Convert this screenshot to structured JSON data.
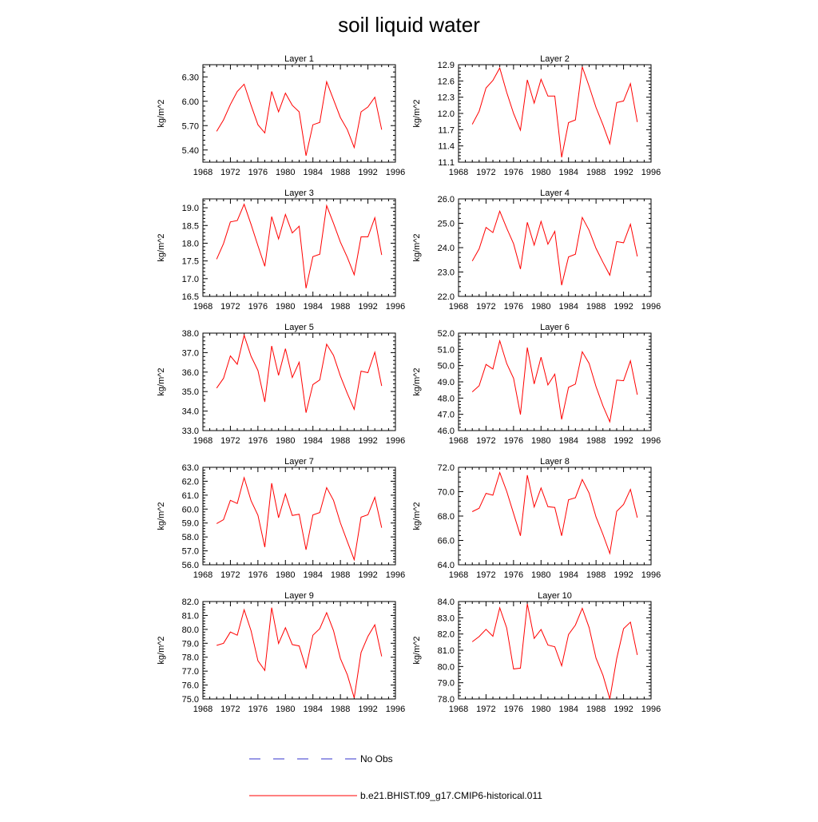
{
  "figure": {
    "title": "soil liquid water",
    "legend": {
      "placement": "bottom",
      "entries": [
        {
          "label": "No Obs",
          "color": "#3333cc",
          "style": "dashed"
        },
        {
          "label": "b.e21.BHIST.f09_g17.CMIP6-historical.011",
          "color": "#ff0000",
          "style": "solid"
        }
      ]
    }
  },
  "chart_data": [
    {
      "type": "line",
      "title": "Layer 1",
      "xlabel": "",
      "ylabel": "kg/m^2",
      "grid": false,
      "xlim": [
        1968,
        1996
      ],
      "xticks": [
        "1968",
        "1972",
        "1976",
        "1980",
        "1984",
        "1988",
        "1992",
        "1996"
      ],
      "ylim": [
        5.25,
        6.45
      ],
      "yticks": [
        "5.40",
        "5.70",
        "6.00",
        "6.30"
      ],
      "x": [
        1970,
        1971,
        1972,
        1973,
        1974,
        1975,
        1976,
        1977,
        1978,
        1979,
        1980,
        1981,
        1982,
        1983,
        1984,
        1985,
        1986,
        1987,
        1988,
        1989,
        1990,
        1991,
        1992,
        1993,
        1994
      ],
      "series": [
        {
          "name": "b.e21.BHIST.f09_g17.CMIP6-historical.011",
          "color": "#ff0000",
          "values": [
            5.63,
            5.77,
            5.96,
            6.12,
            6.21,
            5.95,
            5.71,
            5.61,
            6.12,
            5.87,
            6.1,
            5.95,
            5.87,
            5.33,
            5.71,
            5.74,
            6.24,
            6.02,
            5.8,
            5.65,
            5.43,
            5.87,
            5.93,
            6.05,
            5.65
          ]
        }
      ]
    },
    {
      "type": "line",
      "title": "Layer 2",
      "xlabel": "",
      "ylabel": "kg/m^2",
      "grid": false,
      "xlim": [
        1968,
        1996
      ],
      "xticks": [
        "1968",
        "1972",
        "1976",
        "1980",
        "1984",
        "1988",
        "1992",
        "1996"
      ],
      "ylim": [
        11.1,
        12.9
      ],
      "yticks": [
        "11.1",
        "11.4",
        "11.7",
        "12.0",
        "12.3",
        "12.6",
        "12.9"
      ],
      "x": [
        1970,
        1971,
        1972,
        1973,
        1974,
        1975,
        1976,
        1977,
        1978,
        1979,
        1980,
        1981,
        1982,
        1983,
        1984,
        1985,
        1986,
        1987,
        1988,
        1989,
        1990,
        1991,
        1992,
        1993,
        1994
      ],
      "series": [
        {
          "name": "b.e21.BHIST.f09_g17.CMIP6-historical.011",
          "color": "#ff0000",
          "values": [
            11.8,
            12.04,
            12.47,
            12.61,
            12.84,
            12.39,
            12.0,
            11.69,
            12.62,
            12.19,
            12.63,
            12.32,
            12.32,
            11.19,
            11.83,
            11.88,
            12.86,
            12.5,
            12.11,
            11.79,
            11.44,
            12.2,
            12.23,
            12.55,
            11.84
          ]
        }
      ]
    },
    {
      "type": "line",
      "title": "Layer 3",
      "xlabel": "",
      "ylabel": "kg/m^2",
      "grid": false,
      "xlim": [
        1968,
        1996
      ],
      "xticks": [
        "1968",
        "1972",
        "1976",
        "1980",
        "1984",
        "1988",
        "1992",
        "1996"
      ],
      "ylim": [
        16.5,
        19.25
      ],
      "yticks": [
        "16.5",
        "17.0",
        "17.5",
        "18.0",
        "18.5",
        "19.0"
      ],
      "x": [
        1970,
        1971,
        1972,
        1973,
        1974,
        1975,
        1976,
        1977,
        1978,
        1979,
        1980,
        1981,
        1982,
        1983,
        1984,
        1985,
        1986,
        1987,
        1988,
        1989,
        1990,
        1991,
        1992,
        1993,
        1994
      ],
      "series": [
        {
          "name": "b.e21.BHIST.f09_g17.CMIP6-historical.011",
          "color": "#ff0000",
          "values": [
            17.55,
            17.99,
            18.6,
            18.64,
            19.1,
            18.53,
            17.93,
            17.35,
            18.75,
            18.12,
            18.81,
            18.29,
            18.48,
            16.73,
            17.62,
            17.69,
            19.06,
            18.56,
            18.03,
            17.6,
            17.11,
            18.18,
            18.18,
            18.72,
            17.67
          ]
        }
      ]
    },
    {
      "type": "line",
      "title": "Layer 4",
      "xlabel": "",
      "ylabel": "kg/m^2",
      "grid": false,
      "xlim": [
        1968,
        1996
      ],
      "xticks": [
        "1968",
        "1972",
        "1976",
        "1980",
        "1984",
        "1988",
        "1992",
        "1996"
      ],
      "ylim": [
        22.0,
        26.0
      ],
      "yticks": [
        "22.0",
        "23.0",
        "24.0",
        "25.0",
        "26.0"
      ],
      "x": [
        1970,
        1971,
        1972,
        1973,
        1974,
        1975,
        1976,
        1977,
        1978,
        1979,
        1980,
        1981,
        1982,
        1983,
        1984,
        1985,
        1986,
        1987,
        1988,
        1989,
        1990,
        1991,
        1992,
        1993,
        1994
      ],
      "series": [
        {
          "name": "b.e21.BHIST.f09_g17.CMIP6-historical.011",
          "color": "#ff0000",
          "values": [
            23.45,
            23.95,
            24.83,
            24.62,
            25.5,
            24.8,
            24.16,
            23.12,
            25.04,
            24.1,
            25.08,
            24.14,
            24.67,
            22.46,
            23.62,
            23.73,
            25.24,
            24.71,
            23.97,
            23.4,
            22.87,
            24.25,
            24.2,
            24.96,
            23.64
          ]
        }
      ]
    },
    {
      "type": "line",
      "title": "Layer 5",
      "xlabel": "",
      "ylabel": "kg/m^2",
      "grid": false,
      "xlim": [
        1968,
        1996
      ],
      "xticks": [
        "1968",
        "1972",
        "1976",
        "1980",
        "1984",
        "1988",
        "1992",
        "1996"
      ],
      "ylim": [
        33.0,
        38.0
      ],
      "yticks": [
        "33.0",
        "34.0",
        "35.0",
        "36.0",
        "37.0",
        "38.0"
      ],
      "x": [
        1970,
        1971,
        1972,
        1973,
        1974,
        1975,
        1976,
        1977,
        1978,
        1979,
        1980,
        1981,
        1982,
        1983,
        1984,
        1985,
        1986,
        1987,
        1988,
        1989,
        1990,
        1991,
        1992,
        1993,
        1994
      ],
      "series": [
        {
          "name": "b.e21.BHIST.f09_g17.CMIP6-historical.011",
          "color": "#ff0000",
          "values": [
            35.18,
            35.68,
            36.83,
            36.4,
            37.89,
            36.81,
            36.08,
            34.47,
            37.34,
            35.83,
            37.2,
            35.72,
            36.51,
            33.92,
            35.36,
            35.6,
            37.43,
            36.86,
            35.8,
            34.9,
            34.09,
            36.05,
            35.97,
            37.02,
            35.29
          ]
        }
      ]
    },
    {
      "type": "line",
      "title": "Layer 6",
      "xlabel": "",
      "ylabel": "kg/m^2",
      "grid": false,
      "xlim": [
        1968,
        1996
      ],
      "xticks": [
        "1968",
        "1972",
        "1976",
        "1980",
        "1984",
        "1988",
        "1992",
        "1996"
      ],
      "ylim": [
        46.0,
        52.0
      ],
      "yticks": [
        "46.0",
        "47.0",
        "48.0",
        "49.0",
        "50.0",
        "51.0",
        "52.0"
      ],
      "x": [
        1970,
        1971,
        1972,
        1973,
        1974,
        1975,
        1976,
        1977,
        1978,
        1979,
        1980,
        1981,
        1982,
        1983,
        1984,
        1985,
        1986,
        1987,
        1988,
        1989,
        1990,
        1991,
        1992,
        1993,
        1994
      ],
      "series": [
        {
          "name": "b.e21.BHIST.f09_g17.CMIP6-historical.011",
          "color": "#ff0000",
          "values": [
            48.38,
            48.76,
            50.07,
            49.79,
            51.53,
            50.13,
            49.22,
            46.99,
            51.11,
            48.87,
            50.52,
            48.81,
            49.47,
            46.69,
            48.66,
            48.86,
            50.85,
            50.13,
            48.71,
            47.52,
            46.54,
            49.11,
            49.07,
            50.3,
            48.21
          ]
        }
      ]
    },
    {
      "type": "line",
      "title": "Layer 7",
      "xlabel": "",
      "ylabel": "kg/m^2",
      "grid": false,
      "xlim": [
        1968,
        1996
      ],
      "xticks": [
        "1968",
        "1972",
        "1976",
        "1980",
        "1984",
        "1988",
        "1992",
        "1996"
      ],
      "ylim": [
        56.0,
        63.0
      ],
      "yticks": [
        "56.0",
        "57.0",
        "58.0",
        "59.0",
        "60.0",
        "61.0",
        "62.0",
        "63.0"
      ],
      "x": [
        1970,
        1971,
        1972,
        1973,
        1974,
        1975,
        1976,
        1977,
        1978,
        1979,
        1980,
        1981,
        1982,
        1983,
        1984,
        1985,
        1986,
        1987,
        1988,
        1989,
        1990,
        1991,
        1992,
        1993,
        1994
      ],
      "series": [
        {
          "name": "b.e21.BHIST.f09_g17.CMIP6-historical.011",
          "color": "#ff0000",
          "values": [
            58.96,
            59.24,
            60.63,
            60.4,
            62.26,
            60.6,
            59.56,
            57.27,
            61.86,
            59.38,
            61.09,
            59.54,
            59.63,
            57.08,
            59.58,
            59.75,
            61.54,
            60.63,
            59.01,
            57.67,
            56.36,
            59.42,
            59.59,
            60.84,
            58.66
          ]
        }
      ]
    },
    {
      "type": "line",
      "title": "Layer 8",
      "xlabel": "",
      "ylabel": "kg/m^2",
      "grid": false,
      "xlim": [
        1968,
        1996
      ],
      "xticks": [
        "1968",
        "1972",
        "1976",
        "1980",
        "1984",
        "1988",
        "1992",
        "1996"
      ],
      "ylim": [
        64.0,
        72.0
      ],
      "yticks": [
        "64.0",
        "66.0",
        "68.0",
        "70.0",
        "72.0"
      ],
      "x": [
        1970,
        1971,
        1972,
        1973,
        1974,
        1975,
        1976,
        1977,
        1978,
        1979,
        1980,
        1981,
        1982,
        1983,
        1984,
        1985,
        1986,
        1987,
        1988,
        1989,
        1990,
        1991,
        1992,
        1993,
        1994
      ],
      "series": [
        {
          "name": "b.e21.BHIST.f09_g17.CMIP6-historical.011",
          "color": "#ff0000",
          "values": [
            68.36,
            68.64,
            69.86,
            69.71,
            71.57,
            70.03,
            68.21,
            66.38,
            71.36,
            68.74,
            70.31,
            68.77,
            68.71,
            66.38,
            69.33,
            69.5,
            71.0,
            69.88,
            67.93,
            66.49,
            64.93,
            68.39,
            68.95,
            70.19,
            67.87
          ]
        }
      ]
    },
    {
      "type": "line",
      "title": "Layer 9",
      "xlabel": "",
      "ylabel": "kg/m^2",
      "grid": false,
      "xlim": [
        1968,
        1996
      ],
      "xticks": [
        "1968",
        "1972",
        "1976",
        "1980",
        "1984",
        "1988",
        "1992",
        "1996"
      ],
      "ylim": [
        75.0,
        82.0
      ],
      "yticks": [
        "75.0",
        "76.0",
        "77.0",
        "78.0",
        "79.0",
        "80.0",
        "81.0",
        "82.0"
      ],
      "x": [
        1970,
        1971,
        1972,
        1973,
        1974,
        1975,
        1976,
        1977,
        1978,
        1979,
        1980,
        1981,
        1982,
        1983,
        1984,
        1985,
        1986,
        1987,
        1988,
        1989,
        1990,
        1991,
        1992,
        1993,
        1994
      ],
      "series": [
        {
          "name": "b.e21.BHIST.f09_g17.CMIP6-historical.011",
          "color": "#ff0000",
          "values": [
            78.85,
            79.0,
            79.81,
            79.58,
            81.41,
            79.9,
            77.74,
            77.05,
            81.56,
            78.98,
            80.12,
            78.91,
            78.81,
            77.23,
            79.58,
            80.05,
            81.2,
            79.91,
            77.91,
            76.74,
            75.08,
            78.34,
            79.5,
            80.33,
            78.06
          ]
        }
      ]
    },
    {
      "type": "line",
      "title": "Layer 10",
      "xlabel": "",
      "ylabel": "kg/m^2",
      "grid": false,
      "xlim": [
        1968,
        1996
      ],
      "xticks": [
        "1968",
        "1972",
        "1976",
        "1980",
        "1984",
        "1988",
        "1992",
        "1996"
      ],
      "ylim": [
        78.0,
        84.0
      ],
      "yticks": [
        "78.0",
        "79.0",
        "80.0",
        "81.0",
        "82.0",
        "83.0",
        "84.0"
      ],
      "x": [
        1970,
        1971,
        1972,
        1973,
        1974,
        1975,
        1976,
        1977,
        1978,
        1979,
        1980,
        1981,
        1982,
        1983,
        1984,
        1985,
        1986,
        1987,
        1988,
        1989,
        1990,
        1991,
        1992,
        1993,
        1994
      ],
      "series": [
        {
          "name": "b.e21.BHIST.f09_g17.CMIP6-historical.011",
          "color": "#ff0000",
          "values": [
            81.52,
            81.84,
            82.29,
            81.86,
            83.61,
            82.37,
            79.85,
            79.9,
            83.86,
            81.73,
            82.28,
            81.32,
            81.21,
            80.04,
            81.97,
            82.55,
            83.58,
            82.39,
            80.52,
            79.46,
            78.01,
            80.49,
            82.33,
            82.73,
            80.71
          ]
        }
      ]
    }
  ]
}
